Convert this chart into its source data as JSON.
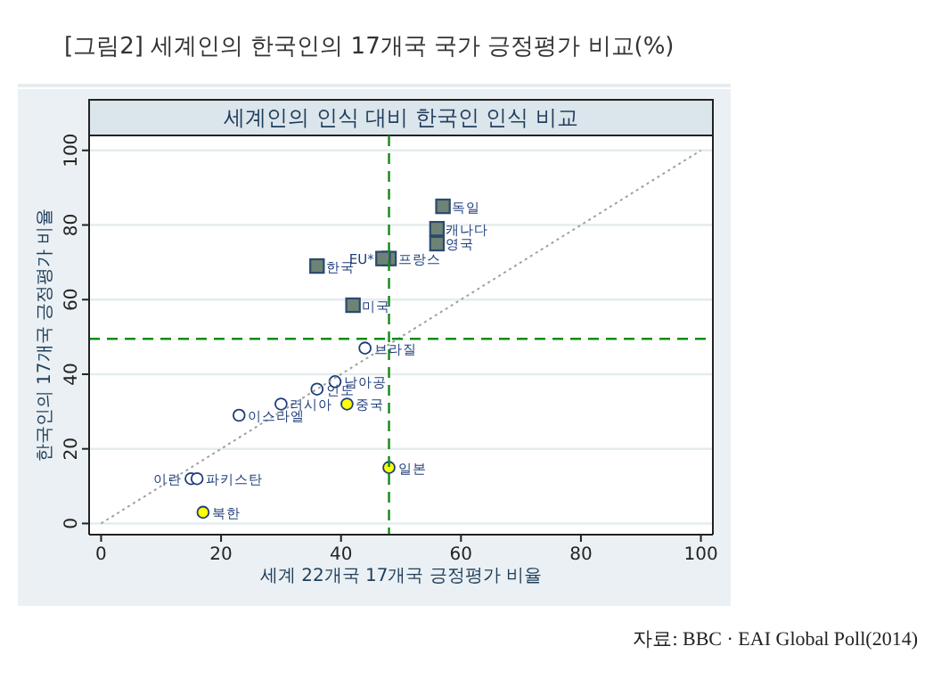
{
  "chart_data": {
    "type": "scatter",
    "title": "[그림2] 세계인의 한국인의 17개국 국가 긍정평가 비교(%)",
    "subtitle": "세계인의 인식 대비 한국인 인식 비교",
    "xlabel": "세계 22개국 17개국 긍정평가 비율",
    "ylabel": "한국인의 17개국 긍정평가 비율",
    "xlim": [
      -2,
      102
    ],
    "ylim": [
      -3,
      104
    ],
    "xticks": [
      0,
      20,
      40,
      60,
      80,
      100
    ],
    "yticks": [
      0,
      20,
      40,
      60,
      80,
      100
    ],
    "grid": "y",
    "series": [
      {
        "marker": "square",
        "color": "#6e8375",
        "x": [
          57,
          56,
          56,
          48,
          47,
          36,
          42
        ],
        "values": [
          85,
          79,
          75,
          71,
          71,
          69,
          58.5
        ]
      },
      {
        "marker": "circle",
        "color": "#ffffff",
        "x": [
          44,
          39,
          36,
          30,
          23,
          15,
          16
        ],
        "values": [
          47,
          38,
          36,
          32,
          29,
          12,
          12
        ]
      },
      {
        "marker": "circle",
        "color": "#ffff00",
        "x": [
          41,
          48,
          17
        ],
        "values": [
          32,
          15,
          3
        ]
      },
      {
        "type": "line",
        "marker": "none",
        "line_style": "dotted",
        "color": "#a0a0a0",
        "x": [
          0,
          100
        ],
        "values": [
          0,
          100
        ]
      }
    ],
    "ref_lines": [
      {
        "axis": "x",
        "value": 48,
        "color": "#138a13",
        "line_style": "dashed"
      },
      {
        "axis": "y",
        "value": 49.5,
        "color": "#138a13",
        "line_style": "dashed"
      }
    ],
    "annotations": [
      {
        "text": "독일",
        "x": 57,
        "y": 85
      },
      {
        "text": "캐나다",
        "x": 56,
        "y": 79
      },
      {
        "text": "영국",
        "x": 56,
        "y": 75
      },
      {
        "text": "프랑스",
        "x": 48,
        "y": 71
      },
      {
        "text": "EU*",
        "x": 47,
        "y": 71
      },
      {
        "text": "한국",
        "x": 36,
        "y": 69
      },
      {
        "text": "미국",
        "x": 42,
        "y": 58.5
      },
      {
        "text": "브라질",
        "x": 44,
        "y": 47
      },
      {
        "text": "남아공",
        "x": 39,
        "y": 38
      },
      {
        "text": "인도",
        "x": 36,
        "y": 36
      },
      {
        "text": "러시아",
        "x": 30,
        "y": 32
      },
      {
        "text": "이스라엘",
        "x": 23,
        "y": 29
      },
      {
        "text": "이란",
        "x": 15,
        "y": 12
      },
      {
        "text": "파키스탄",
        "x": 16,
        "y": 12
      },
      {
        "text": "중국",
        "x": 41,
        "y": 32
      },
      {
        "text": "일본",
        "x": 48,
        "y": 15
      },
      {
        "text": "북한",
        "x": 17,
        "y": 3
      },
      "자료: BBC · EAI Global Poll(2014)"
    ]
  }
}
